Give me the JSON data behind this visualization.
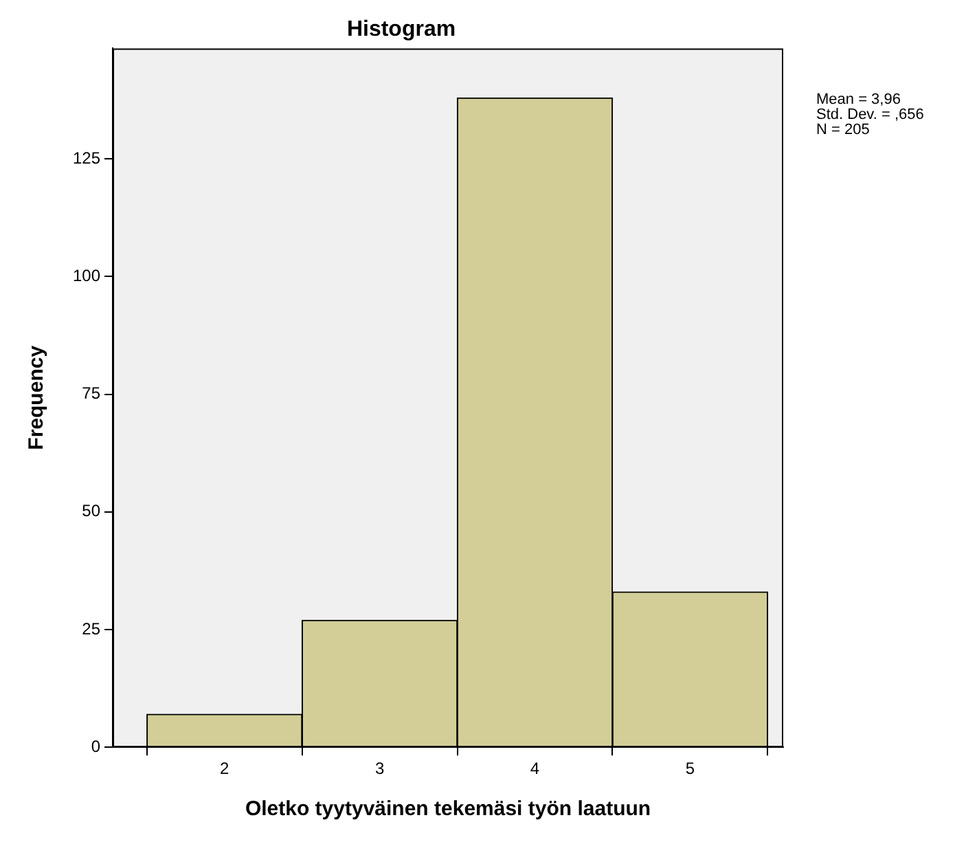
{
  "chart_data": {
    "type": "histogram",
    "title": "Histogram",
    "xlabel": "Oletko tyytyväinen tekemäsi työn laatuun",
    "ylabel": "Frequency",
    "bins": [
      1.5,
      2.5,
      3.5,
      4.5,
      5.5
    ],
    "values": [
      7,
      27,
      138,
      33
    ],
    "color": "#d3ce97",
    "xlim": [
      1.28,
      5.6
    ],
    "xticks": [
      2,
      3,
      4,
      5
    ],
    "ylim": [
      0,
      148.5
    ],
    "yticks": [
      0,
      25,
      50,
      75,
      100,
      125
    ],
    "annotations": [
      "Mean = 3,96",
      "Std. Dev. = ,656",
      "N = 205"
    ]
  }
}
